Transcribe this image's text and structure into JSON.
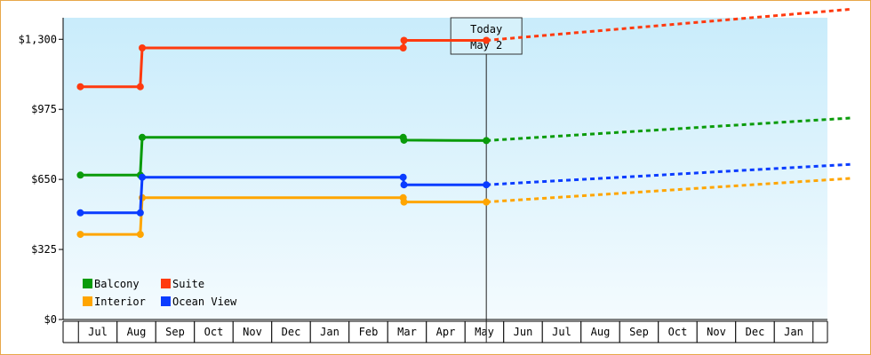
{
  "chart_data": {
    "type": "line",
    "title": "",
    "xlabel": "",
    "ylabel": "",
    "ylim": [
      0,
      1400
    ],
    "yticks": [
      {
        "value": 0,
        "label": "$0"
      },
      {
        "value": 325,
        "label": "$325"
      },
      {
        "value": 650,
        "label": "$650"
      },
      {
        "value": 975,
        "label": "$975"
      },
      {
        "value": 1300,
        "label": "$1,300"
      }
    ],
    "x_months": [
      "Jul",
      "Aug",
      "Sep",
      "Oct",
      "Nov",
      "Dec",
      "Jan",
      "Feb",
      "Mar",
      "Apr",
      "May",
      "Jun",
      "Jul",
      "Aug",
      "Sep",
      "Oct",
      "Nov",
      "Dec",
      "Jan"
    ],
    "today": {
      "line1": "Today",
      "line2": "May 2",
      "x": 10.05
    },
    "grid": false,
    "legend_position": "bottom-left",
    "series": [
      {
        "name": "Balcony",
        "color": "#0a9b0a",
        "points": [
          [
            -0.45,
            670
          ],
          [
            1.1,
            670
          ],
          [
            1.15,
            845
          ],
          [
            7.9,
            845
          ],
          [
            7.92,
            832
          ],
          [
            10.05,
            830
          ]
        ],
        "forecast": [
          [
            10.05,
            830
          ],
          [
            19.5,
            935
          ]
        ]
      },
      {
        "name": "Suite",
        "color": "#ff3a0f",
        "points": [
          [
            -0.45,
            1080
          ],
          [
            1.1,
            1080
          ],
          [
            1.15,
            1260
          ],
          [
            7.9,
            1260
          ],
          [
            7.92,
            1295
          ],
          [
            10.05,
            1295
          ]
        ],
        "forecast": [
          [
            10.05,
            1295
          ],
          [
            19.5,
            1440
          ]
        ]
      },
      {
        "name": "Interior",
        "color": "#ffa500",
        "points": [
          [
            -0.45,
            395
          ],
          [
            1.1,
            395
          ],
          [
            1.15,
            565
          ],
          [
            7.9,
            565
          ],
          [
            7.92,
            545
          ],
          [
            10.05,
            545
          ]
        ],
        "forecast": [
          [
            10.05,
            545
          ],
          [
            19.5,
            655
          ]
        ]
      },
      {
        "name": "Ocean View",
        "color": "#0a3cff",
        "points": [
          [
            -0.45,
            495
          ],
          [
            1.1,
            495
          ],
          [
            1.15,
            660
          ],
          [
            7.9,
            660
          ],
          [
            7.92,
            625
          ],
          [
            10.05,
            625
          ]
        ],
        "forecast": [
          [
            10.05,
            625
          ],
          [
            19.5,
            720
          ]
        ]
      }
    ]
  }
}
